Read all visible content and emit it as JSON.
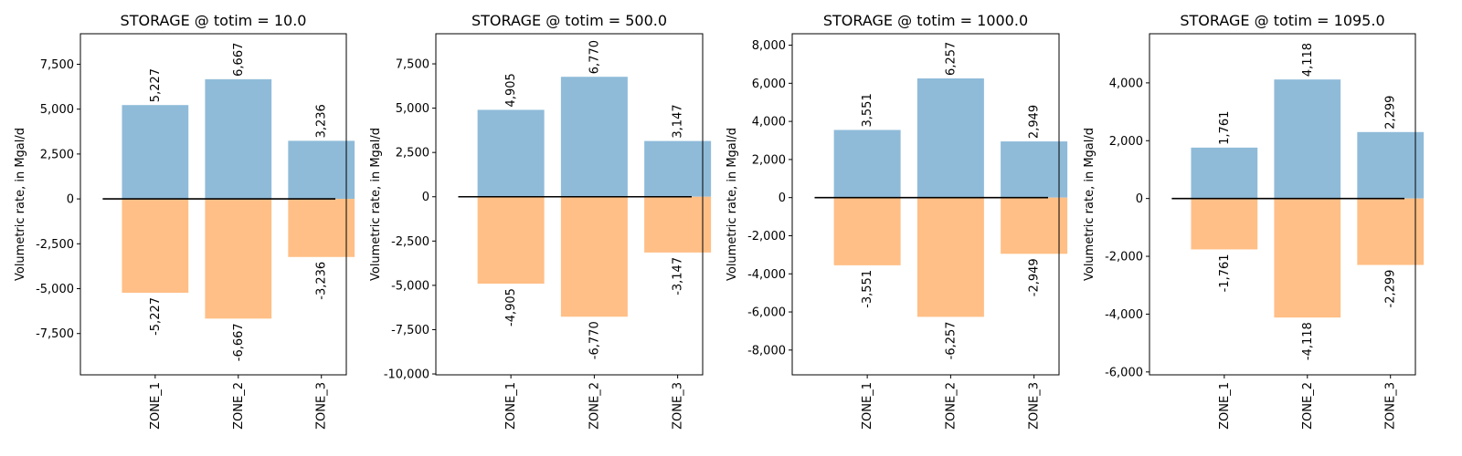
{
  "colors": {
    "positive": "#8fbbd9",
    "negative": "#ffbf86",
    "zero_line": "#000000",
    "frame": "#000000"
  },
  "chart_data": [
    {
      "type": "bar",
      "title": "STORAGE @ totim = 10.0",
      "ylabel": "Volumetric rate, in Mgal/d",
      "categories": [
        "ZONE_1",
        "ZONE_2",
        "ZONE_3"
      ],
      "series": [
        {
          "values": [
            5227,
            6667,
            3236
          ]
        },
        {
          "values": [
            -5227,
            -6667,
            -3236
          ]
        }
      ],
      "data_labels": [
        [
          "5,227",
          "6,667",
          "3,236"
        ],
        [
          "-5,227",
          "-6,667",
          "-3,236"
        ]
      ],
      "yticks": [
        -7500,
        -5000,
        -2500,
        0,
        2500,
        5000,
        7500
      ],
      "ytick_labels": [
        "-7,500",
        "-5,000",
        "-2,500",
        "0",
        "2,500",
        "5,000",
        "7,500"
      ],
      "ylim": [
        -9800,
        9200
      ],
      "grid": false
    },
    {
      "type": "bar",
      "title": "STORAGE @ totim = 500.0",
      "ylabel": "Volumetric rate, in Mgal/d",
      "categories": [
        "ZONE_1",
        "ZONE_2",
        "ZONE_3"
      ],
      "series": [
        {
          "values": [
            4905,
            6770,
            3147
          ]
        },
        {
          "values": [
            -4905,
            -6770,
            -3147
          ]
        }
      ],
      "data_labels": [
        [
          "4,905",
          "6,770",
          "3,147"
        ],
        [
          "-4,905",
          "-6,770",
          "-3,147"
        ]
      ],
      "yticks": [
        -10000,
        -7500,
        -5000,
        -2500,
        0,
        2500,
        5000,
        7500
      ],
      "ytick_labels": [
        "-10,000",
        "-7,500",
        "-5,000",
        "-2,500",
        "0",
        "2,500",
        "5,000",
        "7,500"
      ],
      "ylim": [
        -10050,
        9200
      ],
      "grid": false
    },
    {
      "type": "bar",
      "title": "STORAGE @ totim = 1000.0",
      "ylabel": "Volumetric rate, in Mgal/d",
      "categories": [
        "ZONE_1",
        "ZONE_2",
        "ZONE_3"
      ],
      "series": [
        {
          "values": [
            3551,
            6257,
            2949
          ]
        },
        {
          "values": [
            -3551,
            -6257,
            -2949
          ]
        }
      ],
      "data_labels": [
        [
          "3,551",
          "6,257",
          "2,949"
        ],
        [
          "-3,551",
          "-6,257",
          "-2,949"
        ]
      ],
      "yticks": [
        -8000,
        -6000,
        -4000,
        -2000,
        0,
        2000,
        4000,
        6000,
        8000
      ],
      "ytick_labels": [
        "-8,000",
        "-6,000",
        "-4,000",
        "-2,000",
        "0",
        "2,000",
        "4,000",
        "6,000",
        "8,000"
      ],
      "ylim": [
        -9300,
        8600
      ],
      "grid": false
    },
    {
      "type": "bar",
      "title": "STORAGE @ totim = 1095.0",
      "ylabel": "Volumetric rate, in Mgal/d",
      "categories": [
        "ZONE_1",
        "ZONE_2",
        "ZONE_3"
      ],
      "series": [
        {
          "values": [
            1761,
            4118,
            2299
          ]
        },
        {
          "values": [
            -1761,
            -4118,
            -2299
          ]
        }
      ],
      "data_labels": [
        [
          "1,761",
          "4,118",
          "2,299"
        ],
        [
          "-1,761",
          "-4,118",
          "-2,299"
        ]
      ],
      "yticks": [
        -6000,
        -4000,
        -2000,
        0,
        2000,
        4000
      ],
      "ytick_labels": [
        "-6,000",
        "-4,000",
        "-2,000",
        "0",
        "2,000",
        "4,000"
      ],
      "ylim": [
        -6100,
        5700
      ],
      "grid": false
    }
  ]
}
